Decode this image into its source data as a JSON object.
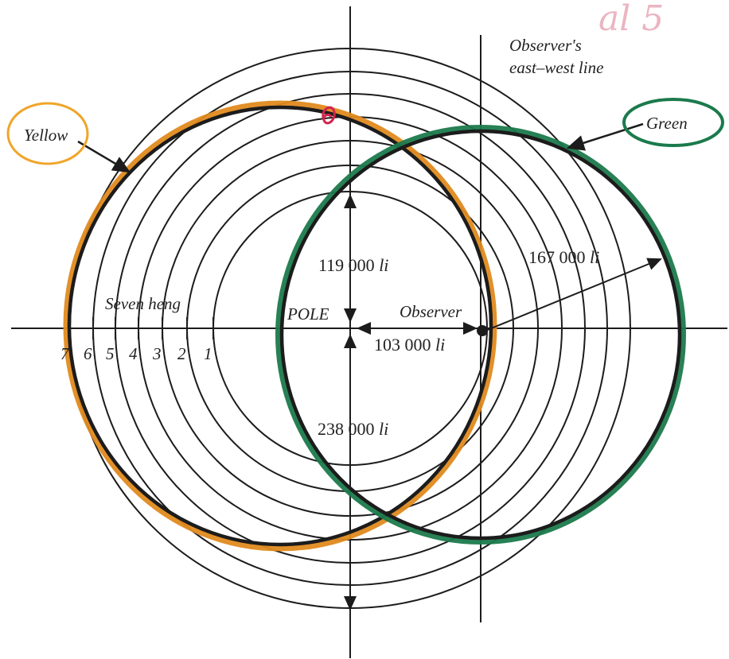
{
  "labels": {
    "east_west_line_1": "Observer's",
    "east_west_line_2": "east–west line",
    "yellow": "Yellow",
    "green": "Green",
    "seven_heng": "Seven heng",
    "pole": "POLE",
    "observer": "Observer",
    "dist_119_num": "119 000",
    "dist_167_num": "167 000",
    "dist_103_num": "103 000",
    "dist_238_num": "238 000",
    "unit": "li",
    "corner_scribble": "al 5"
  },
  "heng_numbers": [
    "7",
    "6",
    "5",
    "4",
    "3",
    "2",
    "1"
  ],
  "colors": {
    "yellow_path": "#e08a1e",
    "green_path": "#1b7a4c",
    "yellow_ring": "#f0a52a",
    "green_ring": "#1b7a4c",
    "pole_mark": "#d3234a",
    "corner_scribble": "#e5a3b3",
    "ink": "#1c1c1c"
  }
}
